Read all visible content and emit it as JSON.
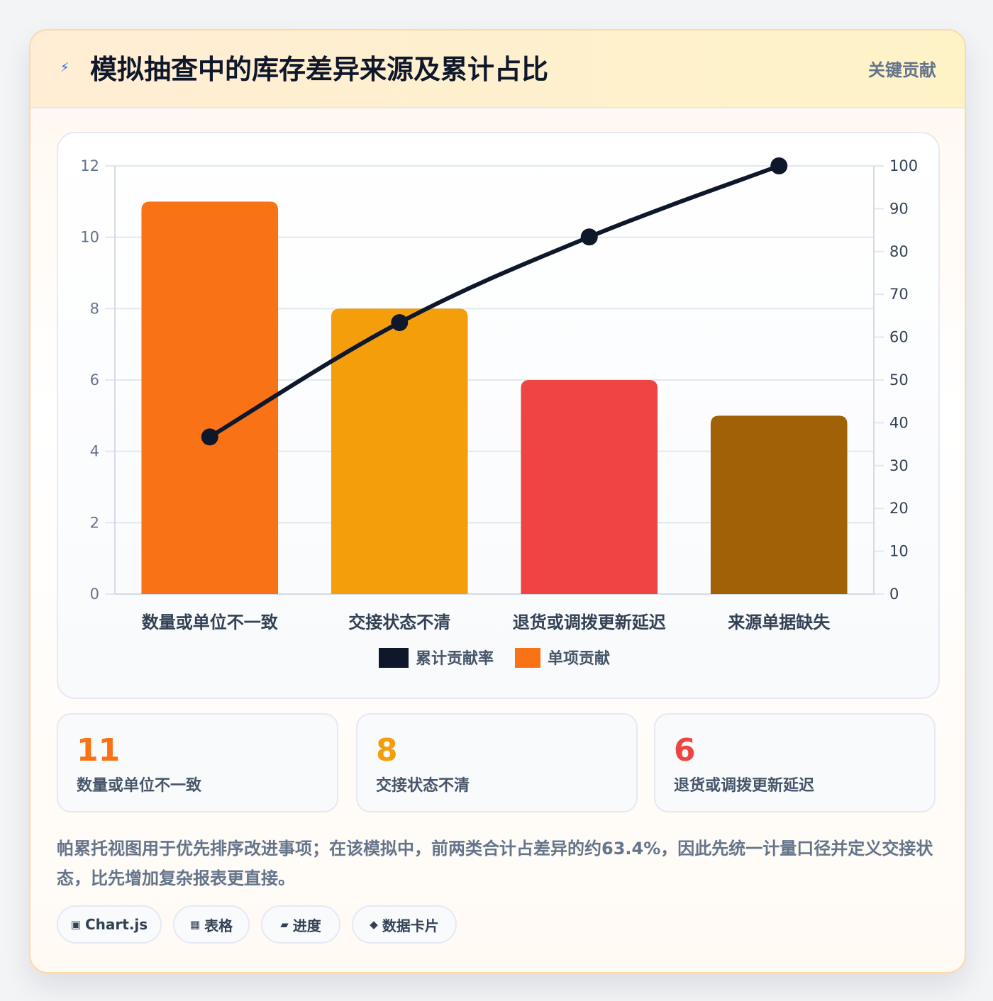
{
  "header": {
    "icon": "lightning-icon",
    "title": "模拟抽查中的库存差异来源及累计占比",
    "badge": "关键贡献"
  },
  "chart_data": {
    "type": "bar",
    "categories": [
      "数量或单位不一致",
      "交接状态不清",
      "退货或调拨更新延迟",
      "来源单据缺失"
    ],
    "series": [
      {
        "name": "单项贡献",
        "type": "bar",
        "axis": "left",
        "values": [
          11,
          8,
          6,
          5
        ],
        "colors": [
          "#f97316",
          "#f59e0b",
          "#ef4444",
          "#a16207"
        ]
      },
      {
        "name": "累计贡献率",
        "type": "line",
        "axis": "right",
        "values": [
          36.7,
          63.4,
          83.4,
          100
        ],
        "color": "#0f172a"
      }
    ],
    "ylim_left": [
      0,
      12
    ],
    "yticks_left": [
      0,
      2,
      4,
      6,
      8,
      10,
      12
    ],
    "ylim_right": [
      0,
      100
    ],
    "yticks_right": [
      0,
      10,
      20,
      30,
      40,
      50,
      60,
      70,
      80,
      90,
      100
    ],
    "legend": [
      {
        "label": "累计贡献率",
        "color": "#0f172a"
      },
      {
        "label": "单项贡献",
        "color": "#f97316"
      }
    ],
    "legend_position": "bottom",
    "grid": true
  },
  "stats": [
    {
      "value": "11",
      "label": "数量或单位不一致",
      "color": "#f97316"
    },
    {
      "value": "8",
      "label": "交接状态不清",
      "color": "#f59e0b"
    },
    {
      "value": "6",
      "label": "退货或调拨更新延迟",
      "color": "#ef4444"
    }
  ],
  "note": "帕累托视图用于优先排序改进事项；在该模拟中，前两类合计占差异的约63.4%，因此先统一计量口径并定义交接状态，比先增加复杂报表更直接。",
  "tags": [
    {
      "icon": "chip-icon",
      "glyph": "▣",
      "label": "Chart.js"
    },
    {
      "icon": "table-icon",
      "glyph": "▦",
      "label": "表格"
    },
    {
      "icon": "progress-icon",
      "glyph": "▰",
      "label": "进度"
    },
    {
      "icon": "diamond-icon",
      "glyph": "◆",
      "label": "数据卡片"
    }
  ]
}
